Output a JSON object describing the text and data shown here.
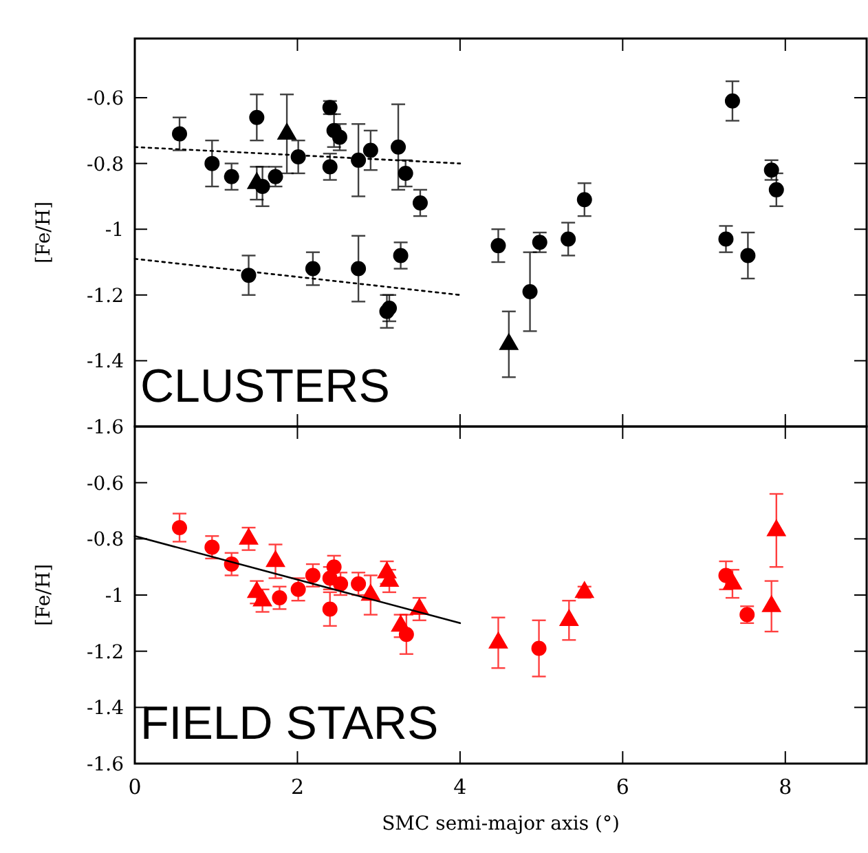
{
  "chart_data": [
    {
      "type": "scatter",
      "ylabel": "[Fe/H]",
      "annotations": [
        "CLUSTERS"
      ],
      "xlim": [
        0,
        9
      ],
      "xticks": [
        0,
        2,
        4,
        6,
        8
      ],
      "ylim": [
        -1.6,
        -0.42
      ],
      "yticks": [
        -1.6,
        -1.4,
        -1.2,
        -1,
        -0.8,
        -0.6
      ],
      "tick_labels": "y",
      "grid": false,
      "series": [
        {
          "marker": "circle",
          "color": "#000000",
          "x": [
            0.55,
            0.95,
            1.19,
            1.5,
            1.57,
            1.73,
            2.01,
            2.4,
            2.4,
            2.45,
            2.52,
            2.75,
            2.9,
            3.33,
            3.51,
            1.4,
            2.19,
            3.1,
            3.13,
            3.27,
            4.47,
            4.98,
            5.33,
            5.53,
            7.35,
            7.27,
            7.54,
            7.83,
            7.89
          ],
          "values": [
            -0.71,
            -0.8,
            -0.84,
            -0.66,
            -0.87,
            -0.84,
            -0.78,
            -0.63,
            -0.81,
            -0.7,
            -0.72,
            -0.79,
            -0.76,
            -0.83,
            -0.92,
            -1.14,
            -1.12,
            -1.25,
            -1.24,
            -1.08,
            -1.05,
            -1.04,
            -1.03,
            -0.91,
            -0.61,
            -1.03,
            -1.08,
            -0.82,
            -0.88
          ],
          "errors": [
            0.05,
            0.07,
            0.04,
            0.07,
            0.06,
            0.03,
            0.05,
            0.02,
            0.04,
            0.05,
            0.04,
            0.11,
            0.06,
            0.04,
            0.04,
            0.06,
            0.05,
            0.05,
            0.04,
            0.04,
            0.05,
            0.03,
            0.05,
            0.05,
            0.06,
            0.04,
            0.07,
            0.03,
            0.05
          ]
        },
        {
          "marker": "triangle",
          "color": "#000000",
          "x": [
            1.5,
            1.87,
            4.6
          ],
          "values": [
            -0.86,
            -0.71,
            -1.35
          ],
          "errors": [
            0.05,
            0.12,
            0.1
          ]
        },
        {
          "marker": "circle",
          "color": "#000000",
          "x": [
            3.24,
            2.75,
            4.86
          ],
          "values": [
            -0.75,
            -1.12,
            -1.19
          ],
          "errors": [
            0.13,
            0.1,
            0.12
          ]
        },
        {
          "type": "line",
          "line_style": "dotted",
          "marker": "none",
          "color": "#000000",
          "x": [
            0,
            4
          ],
          "values": [
            -0.75,
            -0.8
          ]
        },
        {
          "type": "line",
          "line_style": "dotted",
          "marker": "none",
          "color": "#000000",
          "x": [
            0,
            4
          ],
          "values": [
            -1.09,
            -1.2
          ]
        }
      ]
    },
    {
      "type": "scatter",
      "ylabel": "[Fe/H]",
      "xlabel": "SMC semi-major axis (°)",
      "annotations": [
        "FIELD STARS"
      ],
      "xlim": [
        0,
        9
      ],
      "xticks": [
        0,
        2,
        4,
        6,
        8
      ],
      "ylim": [
        -1.6,
        -0.4
      ],
      "yticks": [
        -1.6,
        -1.4,
        -1.2,
        -1,
        -0.8,
        -0.6
      ],
      "grid": false,
      "series": [
        {
          "marker": "circle",
          "color": "#ff0000",
          "x": [
            0.55,
            0.95,
            1.19,
            1.78,
            2.01,
            2.19,
            2.4,
            2.45,
            2.53,
            2.4,
            2.75,
            3.34,
            4.97,
            7.27,
            7.53
          ],
          "values": [
            -0.76,
            -0.83,
            -0.89,
            -1.01,
            -0.98,
            -0.93,
            -0.94,
            -0.9,
            -0.96,
            -1.05,
            -0.96,
            -1.14,
            -1.19,
            -0.93,
            -1.07
          ],
          "errors": [
            0.05,
            0.04,
            0.04,
            0.04,
            0.04,
            0.04,
            0.04,
            0.04,
            0.04,
            0.06,
            0.04,
            0.07,
            0.1,
            0.05,
            0.03
          ]
        },
        {
          "marker": "triangle",
          "color": "#ff0000",
          "x": [
            1.4,
            1.5,
            1.57,
            1.73,
            2.9,
            3.1,
            3.13,
            3.27,
            3.5,
            4.47,
            5.34,
            5.53,
            7.35,
            7.89,
            7.83
          ],
          "values": [
            -0.8,
            -0.99,
            -1.02,
            -0.88,
            -1,
            -0.92,
            -0.95,
            -1.11,
            -1.05,
            -1.17,
            -1.09,
            -0.99,
            -0.96,
            -0.77,
            -1.04
          ],
          "errors": [
            0.04,
            0.04,
            0.04,
            0.06,
            0.07,
            0.04,
            0.04,
            0.04,
            0.04,
            0.09,
            0.07,
            0.02,
            0.05,
            0.13,
            0.09
          ]
        },
        {
          "type": "line",
          "line_style": "solid",
          "marker": "none",
          "color": "#000000",
          "x": [
            0,
            4
          ],
          "values": [
            -0.79,
            -1.1
          ]
        }
      ]
    }
  ]
}
